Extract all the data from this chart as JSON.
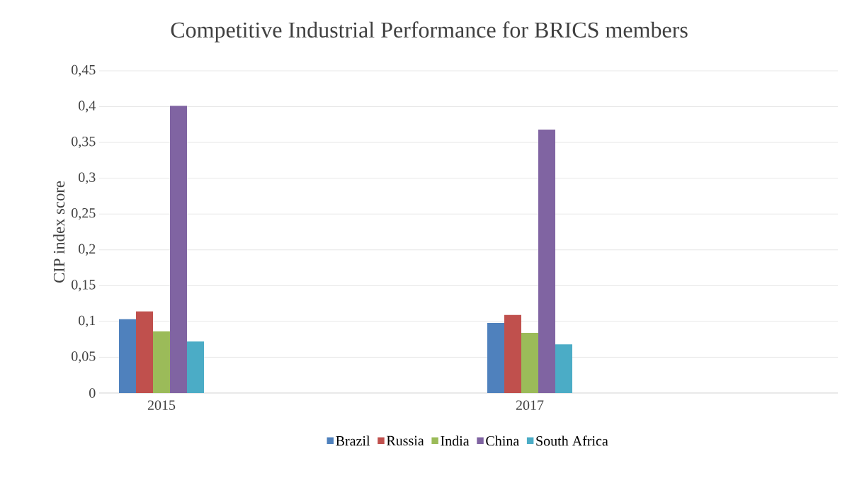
{
  "chart_data": {
    "type": "bar",
    "title": "Competitive Industrial Performance for BRICS members",
    "ylabel": "CIP index score",
    "categories": [
      "2015",
      "2017"
    ],
    "series": [
      {
        "name": "Brazil",
        "color": "#4f81bd",
        "values": [
          0.103,
          0.098
        ]
      },
      {
        "name": "Russia",
        "color": "#c0504d",
        "values": [
          0.114,
          0.109
        ]
      },
      {
        "name": "India",
        "color": "#9bbb59",
        "values": [
          0.086,
          0.084
        ]
      },
      {
        "name": "China",
        "color": "#8064a2",
        "values": [
          0.401,
          0.368
        ]
      },
      {
        "name": "South Africa",
        "color": "#4bacc6",
        "values": [
          0.072,
          0.068
        ]
      }
    ],
    "ylim": [
      0,
      0.45
    ],
    "yticks": [
      0,
      {
        "value": 0.05,
        "label": "0,05"
      },
      {
        "value": 0.1,
        "label": "0,1"
      },
      {
        "value": 0.15,
        "label": "0,15"
      },
      {
        "value": 0.2,
        "label": "0,2"
      },
      {
        "value": 0.25,
        "label": "0,25"
      },
      {
        "value": 0.3,
        "label": "0,3"
      },
      {
        "value": 0.35,
        "label": "0,35"
      },
      {
        "value": 0.4,
        "label": "0,4"
      },
      {
        "value": 0.45,
        "label": "0,45"
      }
    ],
    "grid": "y",
    "legend": "bottom"
  }
}
